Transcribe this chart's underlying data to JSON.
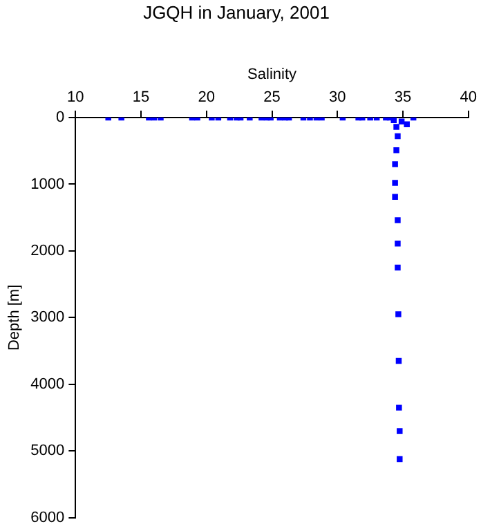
{
  "chart_data": {
    "type": "scatter",
    "title": "JGQH in January, 2001",
    "xlabel": "Salinity",
    "ylabel": "Depth [m]",
    "x": [
      12.5,
      13.5,
      15.6,
      16.0,
      16.5,
      18.9,
      19.3,
      20.4,
      20.9,
      21.8,
      22.3,
      22.6,
      23.3,
      24.2,
      24.6,
      24.9,
      25.6,
      26.0,
      26.3,
      27.4,
      27.9,
      28.4,
      28.8,
      30.4,
      31.6,
      31.9,
      32.5,
      33.0,
      33.7,
      35.8,
      34.0,
      34.3,
      34.9,
      35.3,
      34.5,
      34.6,
      34.5,
      34.4,
      34.4,
      34.4,
      34.6,
      34.6,
      34.6,
      34.65,
      34.68,
      34.7,
      34.75,
      34.75
    ],
    "values": [
      0,
      0,
      0,
      0,
      0,
      0,
      0,
      0,
      0,
      0,
      0,
      0,
      0,
      0,
      0,
      0,
      0,
      0,
      0,
      0,
      0,
      0,
      0,
      0,
      0,
      0,
      0,
      0,
      0,
      0,
      0,
      40,
      60,
      100,
      140,
      280,
      490,
      700,
      980,
      1190,
      1540,
      1890,
      2250,
      2950,
      3650,
      4350,
      4700,
      5120
    ],
    "color": "#0000ff",
    "marker": "square",
    "xlim": [
      10,
      40
    ],
    "xticks": [
      10,
      15,
      20,
      25,
      30,
      35,
      40
    ],
    "ylim": [
      6000,
      0
    ],
    "yticks": [
      0,
      1000,
      2000,
      3000,
      4000,
      5000,
      6000
    ],
    "grid": false,
    "legend": false
  }
}
